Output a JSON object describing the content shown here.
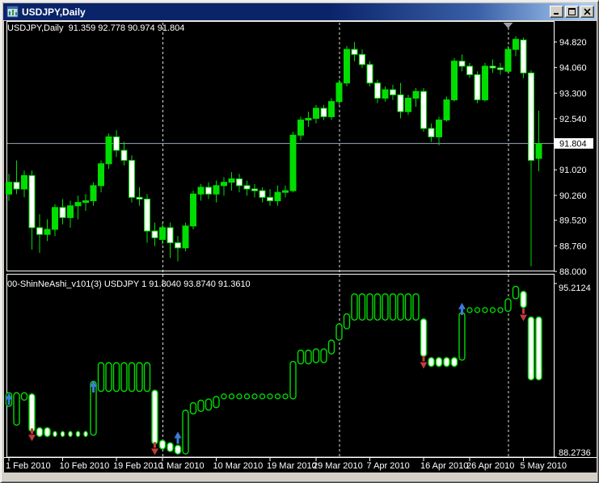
{
  "window": {
    "title": "USDJPY,Daily"
  },
  "main_chart": {
    "ohlc_label": "USDJPY,Daily  91.359 92.778 90.974 91.804",
    "current_price": "91.804",
    "y_ticks": [
      "94.820",
      "94.060",
      "93.300",
      "92.540",
      "91.020",
      "90.260",
      "89.520",
      "88.760",
      "88.000"
    ]
  },
  "indicator_panel": {
    "label": "00-ShinNeAshi_v101(3) USDJPY 1 91.8040 93.8740 91.3610",
    "y_ticks": [
      "95.2124",
      "88.2736"
    ]
  },
  "x_axis": {
    "labels": [
      "1 Feb 2010",
      "10 Feb 2010",
      "19 Feb 2010",
      "1 Mar 2010",
      "10 Mar 2010",
      "19 Mar 2010",
      "29 Mar 2010",
      "7 Apr 2010",
      "16 Apr 2010",
      "26 Apr 2010",
      "5 May 2010"
    ],
    "label_bars": [
      0,
      7,
      14,
      20,
      27,
      34,
      40,
      47,
      54,
      60,
      67
    ]
  },
  "colors": {
    "background": "#000000",
    "bull": "#00DD00",
    "bear_fill": "#FFFFFF",
    "outline": "#00DD00",
    "price_line": "#9AA8B8",
    "separator": "#E0E0E0",
    "panel_border": "#FFFFFF",
    "up_arrow": "#3E7BDB",
    "down_arrow": "#C13B3B",
    "axis_text": "#FFFFFF",
    "tag_bg": "#FFFFFF",
    "tag_text": "#000000",
    "marker": "#9AA0A6",
    "titlebar_left": "#0A246A",
    "titlebar_right": "#A6CAF0",
    "window_frame": "#D4D0C8"
  },
  "chart_data": [
    {
      "type": "candlestick",
      "symbol": "USDJPY",
      "timeframe": "Daily",
      "ylim": [
        88.0,
        94.82
      ],
      "separators_at_bars": [
        20,
        43,
        65
      ],
      "top_marker_bar": 65,
      "current_price": 91.804,
      "ohlc": [
        [
          90.3,
          90.9,
          90.1,
          90.65
        ],
        [
          90.65,
          91.3,
          90.3,
          90.45
        ],
        [
          90.45,
          91.0,
          90.2,
          90.85
        ],
        [
          90.85,
          91.0,
          88.65,
          89.3
        ],
        [
          89.3,
          89.7,
          88.55,
          89.1
        ],
        [
          89.1,
          89.55,
          88.9,
          89.25
        ],
        [
          89.25,
          90.0,
          89.05,
          89.9
        ],
        [
          89.9,
          90.15,
          89.4,
          89.6
        ],
        [
          89.6,
          90.1,
          89.3,
          89.95
        ],
        [
          89.95,
          90.25,
          89.55,
          90.05
        ],
        [
          90.05,
          90.3,
          89.8,
          90.1
        ],
        [
          90.1,
          90.65,
          89.95,
          90.55
        ],
        [
          90.55,
          91.3,
          90.35,
          91.2
        ],
        [
          91.2,
          92.1,
          91.05,
          92.0
        ],
        [
          92.0,
          92.2,
          91.4,
          91.6
        ],
        [
          91.6,
          91.85,
          91.15,
          91.3
        ],
        [
          91.3,
          91.45,
          90.05,
          90.2
        ],
        [
          90.2,
          90.5,
          89.95,
          90.15
        ],
        [
          90.15,
          90.3,
          88.85,
          89.2
        ],
        [
          89.2,
          89.45,
          88.75,
          89.0
        ],
        [
          88.95,
          89.45,
          88.8,
          89.3
        ],
        [
          89.3,
          89.45,
          88.4,
          88.85
        ],
        [
          88.85,
          89.05,
          88.3,
          88.7
        ],
        [
          88.7,
          89.45,
          88.6,
          89.35
        ],
        [
          89.35,
          90.4,
          89.25,
          90.3
        ],
        [
          90.3,
          90.6,
          90.1,
          90.5
        ],
        [
          90.5,
          90.65,
          90.15,
          90.3
        ],
        [
          90.3,
          90.7,
          90.05,
          90.55
        ],
        [
          90.55,
          90.8,
          90.25,
          90.65
        ],
        [
          90.65,
          90.95,
          90.4,
          90.75
        ],
        [
          90.75,
          90.9,
          90.35,
          90.55
        ],
        [
          90.55,
          90.7,
          90.25,
          90.45
        ],
        [
          90.45,
          90.6,
          90.2,
          90.4
        ],
        [
          90.4,
          90.5,
          90.05,
          90.2
        ],
        [
          90.2,
          90.45,
          89.95,
          90.1
        ],
        [
          90.1,
          90.55,
          89.95,
          90.35
        ],
        [
          90.35,
          90.55,
          90.2,
          90.4
        ],
        [
          90.4,
          92.15,
          90.35,
          92.05
        ],
        [
          92.05,
          92.6,
          91.9,
          92.5
        ],
        [
          92.5,
          92.75,
          92.3,
          92.55
        ],
        [
          92.55,
          92.95,
          92.4,
          92.85
        ],
        [
          92.85,
          92.95,
          92.5,
          92.6
        ],
        [
          92.6,
          93.15,
          92.5,
          93.05
        ],
        [
          93.05,
          93.7,
          92.95,
          93.6
        ],
        [
          93.6,
          94.7,
          93.5,
          94.6
        ],
        [
          94.6,
          94.82,
          94.25,
          94.45
        ],
        [
          94.45,
          94.6,
          94.05,
          94.15
        ],
        [
          94.15,
          94.25,
          93.5,
          93.6
        ],
        [
          93.6,
          93.7,
          93.0,
          93.15
        ],
        [
          93.15,
          93.5,
          93.05,
          93.4
        ],
        [
          93.4,
          93.55,
          93.1,
          93.25
        ],
        [
          93.25,
          93.6,
          92.55,
          92.75
        ],
        [
          92.75,
          93.25,
          92.65,
          93.15
        ],
        [
          93.15,
          93.45,
          92.9,
          93.35
        ],
        [
          93.35,
          93.45,
          92.15,
          92.25
        ],
        [
          92.25,
          92.4,
          91.85,
          92.0
        ],
        [
          92.0,
          92.6,
          91.75,
          92.5
        ],
        [
          92.5,
          93.2,
          92.45,
          93.1
        ],
        [
          93.1,
          94.35,
          93.05,
          94.25
        ],
        [
          94.25,
          94.45,
          93.95,
          94.1
        ],
        [
          94.1,
          94.2,
          93.75,
          93.85
        ],
        [
          93.85,
          93.95,
          93.0,
          93.1
        ],
        [
          93.1,
          94.2,
          93.05,
          94.1
        ],
        [
          94.1,
          94.3,
          93.9,
          94.05
        ],
        [
          94.05,
          94.2,
          93.85,
          94.0
        ],
        [
          93.95,
          94.7,
          93.9,
          94.6
        ],
        [
          94.6,
          94.99,
          94.4,
          94.9
        ],
        [
          94.88,
          94.95,
          93.75,
          93.9
        ],
        [
          93.9,
          93.98,
          88.15,
          91.3
        ],
        [
          91.359,
          92.778,
          90.974,
          91.804
        ]
      ]
    },
    {
      "type": "step-indicator",
      "name": "00-ShinNeAshi_v101(3)",
      "ylim": [
        88.2736,
        95.2124
      ],
      "pills": [
        [
          0,
          90.85,
          90.3,
          "b"
        ],
        [
          1,
          90.85,
          89.55,
          "b"
        ],
        [
          2,
          90.85,
          90.55,
          "b"
        ],
        [
          3,
          90.8,
          89.3,
          "w"
        ],
        [
          4,
          89.45,
          89.1,
          "w"
        ],
        [
          5,
          89.45,
          89.1,
          "w"
        ],
        [
          11,
          91.3,
          89.15,
          "b"
        ],
        [
          12,
          92.05,
          90.9,
          "b"
        ],
        [
          13,
          92.05,
          90.9,
          "b"
        ],
        [
          14,
          92.05,
          90.9,
          "b"
        ],
        [
          15,
          92.05,
          90.9,
          "b"
        ],
        [
          16,
          92.05,
          90.9,
          "b"
        ],
        [
          17,
          92.05,
          90.9,
          "b"
        ],
        [
          18,
          92.05,
          90.9,
          "b"
        ],
        [
          19,
          90.95,
          88.8,
          "w"
        ],
        [
          20,
          88.95,
          88.6,
          "w"
        ],
        [
          21,
          88.85,
          88.5,
          "w"
        ],
        [
          22,
          88.75,
          88.4,
          "w"
        ],
        [
          23,
          90.15,
          88.4,
          "b"
        ],
        [
          24,
          90.45,
          90.0,
          "b"
        ],
        [
          25,
          90.55,
          90.1,
          "b"
        ],
        [
          26,
          90.6,
          90.15,
          "b"
        ],
        [
          27,
          90.7,
          90.25,
          "b"
        ],
        [
          37,
          92.1,
          90.6,
          "b"
        ],
        [
          38,
          92.55,
          92.0,
          "b"
        ],
        [
          39,
          92.55,
          92.0,
          "b"
        ],
        [
          40,
          92.6,
          92.05,
          "b"
        ],
        [
          41,
          92.6,
          92.05,
          "b"
        ],
        [
          42,
          92.95,
          92.4,
          "b"
        ],
        [
          43,
          93.6,
          92.95,
          "b"
        ],
        [
          44,
          94.0,
          93.4,
          "b"
        ],
        [
          45,
          94.8,
          93.75,
          "b"
        ],
        [
          46,
          94.8,
          93.75,
          "b"
        ],
        [
          47,
          94.8,
          93.75,
          "b"
        ],
        [
          48,
          94.8,
          93.75,
          "b"
        ],
        [
          49,
          94.8,
          93.75,
          "b"
        ],
        [
          50,
          94.8,
          93.75,
          "b"
        ],
        [
          51,
          94.8,
          93.75,
          "b"
        ],
        [
          52,
          94.8,
          93.75,
          "b"
        ],
        [
          53,
          94.8,
          93.75,
          "b"
        ],
        [
          54,
          93.8,
          92.3,
          "w"
        ],
        [
          55,
          92.25,
          91.9,
          "w"
        ],
        [
          56,
          92.25,
          91.9,
          "w"
        ],
        [
          57,
          92.25,
          91.9,
          "w"
        ],
        [
          58,
          92.25,
          91.9,
          "w"
        ],
        [
          59,
          94.05,
          92.15,
          "b"
        ],
        [
          65,
          94.6,
          94.1,
          "b"
        ],
        [
          66,
          95.1,
          94.6,
          "b"
        ],
        [
          67,
          94.9,
          94.25,
          "w"
        ],
        [
          68,
          93.874,
          91.361,
          "w"
        ],
        [
          69,
          93.874,
          91.361,
          "w"
        ]
      ],
      "dots": [
        [
          6,
          89.2
        ],
        [
          7,
          89.2
        ],
        [
          8,
          89.2
        ],
        [
          9,
          89.2
        ],
        [
          10,
          89.2
        ]
      ],
      "rings": [
        [
          28,
          90.7
        ],
        [
          29,
          90.7
        ],
        [
          30,
          90.7
        ],
        [
          31,
          90.7
        ],
        [
          32,
          90.7
        ],
        [
          33,
          90.7
        ],
        [
          34,
          90.7
        ],
        [
          35,
          90.7
        ],
        [
          36,
          90.7
        ],
        [
          60,
          94.15
        ],
        [
          61,
          94.15
        ],
        [
          62,
          94.15
        ],
        [
          63,
          94.15
        ],
        [
          64,
          94.15
        ]
      ],
      "arrows": [
        [
          0,
          90.55,
          "up"
        ],
        [
          3,
          89.2,
          "down"
        ],
        [
          11,
          91.05,
          "up"
        ],
        [
          19,
          88.65,
          "down"
        ],
        [
          22,
          89.0,
          "up"
        ],
        [
          54,
          92.1,
          "down"
        ],
        [
          59,
          94.15,
          "up"
        ],
        [
          67,
          94.0,
          "down"
        ]
      ]
    }
  ]
}
